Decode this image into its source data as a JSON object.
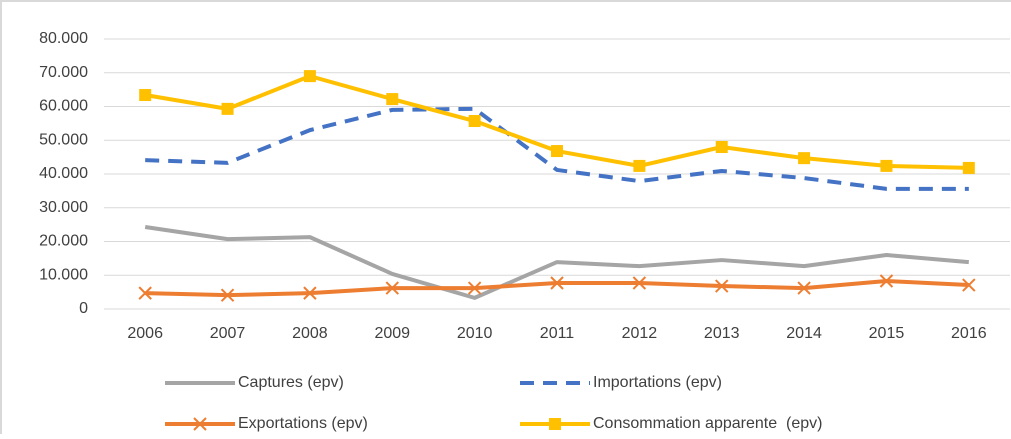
{
  "chart_data": {
    "type": "line",
    "categories": [
      "2006",
      "2007",
      "2008",
      "2009",
      "2010",
      "2011",
      "2012",
      "2013",
      "2014",
      "2015",
      "2016"
    ],
    "ylim": [
      0,
      80000
    ],
    "yticks": [
      0,
      {
        "value": 10000,
        "label": "10.000"
      },
      {
        "value": 20000,
        "label": "20.000"
      },
      {
        "value": 30000,
        "label": "30.000"
      },
      {
        "value": 40000,
        "label": "40.000"
      },
      {
        "value": 50000,
        "label": "50.000"
      },
      {
        "value": 60000,
        "label": "60.000"
      },
      {
        "value": 70000,
        "label": "70.000"
      },
      {
        "value": 80000,
        "label": "80.000"
      }
    ],
    "grid": true,
    "legend": "bottom",
    "series": [
      {
        "name": "Captures (epv)",
        "color": "#a5a5a5",
        "values": [
          24300,
          20700,
          21300,
          10400,
          3300,
          13900,
          12700,
          14500,
          12700,
          16000,
          13900
        ]
      },
      {
        "name": "Importations (epv)",
        "color": "#4472c4",
        "dash": true,
        "values": [
          44100,
          43300,
          53000,
          59000,
          59300,
          41200,
          37900,
          40900,
          38800,
          35600,
          35600
        ]
      },
      {
        "name": "Exportations (epv)",
        "color": "#ed7d31",
        "marker": "x",
        "values": [
          4700,
          4100,
          4700,
          6200,
          6200,
          7700,
          7700,
          6800,
          6200,
          8300,
          7100
        ]
      },
      {
        "name": "Consommation apparente  (epv)",
        "color": "#ffc000",
        "marker": "square",
        "values": [
          63400,
          59300,
          69000,
          62200,
          55700,
          46800,
          42400,
          48000,
          44700,
          42400,
          41800
        ]
      }
    ]
  }
}
